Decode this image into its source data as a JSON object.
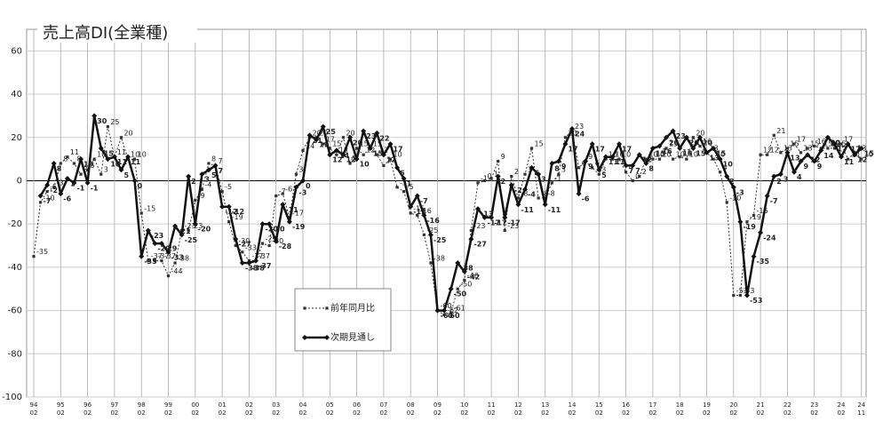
{
  "chart_data": {
    "type": "line",
    "title": "売上高DI(全業種)",
    "ylim": [
      -100,
      70
    ],
    "yticks": [
      -100,
      -80,
      -60,
      -40,
      -20,
      0,
      20,
      40,
      60
    ],
    "grid": true,
    "xticks": [
      {
        "value": 0,
        "label": "94"
      },
      {
        "value": 4,
        "label": "95"
      },
      {
        "value": 8,
        "label": "96"
      },
      {
        "value": 12,
        "label": "97"
      },
      {
        "value": 16,
        "label": "98"
      },
      {
        "value": 20,
        "label": "99"
      },
      {
        "value": 24,
        "label": "00"
      },
      {
        "value": 28,
        "label": "01"
      },
      {
        "value": 32,
        "label": "02"
      },
      {
        "value": 36,
        "label": "03"
      },
      {
        "value": 40,
        "label": "04"
      },
      {
        "value": 44,
        "label": "05"
      },
      {
        "value": 48,
        "label": "06"
      },
      {
        "value": 52,
        "label": "07"
      },
      {
        "value": 56,
        "label": "08"
      },
      {
        "value": 60,
        "label": "09"
      },
      {
        "value": 64,
        "label": "10"
      },
      {
        "value": 68,
        "label": "11"
      },
      {
        "value": 72,
        "label": "12"
      },
      {
        "value": 76,
        "label": "13"
      },
      {
        "value": 80,
        "label": "14"
      },
      {
        "value": 84,
        "label": "15"
      },
      {
        "value": 88,
        "label": "16"
      },
      {
        "value": 92,
        "label": "17"
      },
      {
        "value": 96,
        "label": "18"
      },
      {
        "value": 100,
        "label": "19"
      },
      {
        "value": 104,
        "label": "20"
      },
      {
        "value": 108,
        "label": "21"
      },
      {
        "value": 112,
        "label": "22"
      },
      {
        "value": 116,
        "label": "23"
      },
      {
        "value": 120,
        "label": "24"
      },
      {
        "value": 123,
        "label": "24"
      }
    ],
    "xtick_sublabels": [
      "02",
      "02",
      "02",
      "02",
      "02",
      "02",
      "02",
      "02",
      "02",
      "02",
      "02",
      "02",
      "02",
      "02",
      "02",
      "02",
      "02",
      "02",
      "02",
      "02",
      "02",
      "02",
      "02",
      "02",
      "02",
      "02",
      "02",
      "02",
      "02",
      "02",
      "02",
      "11"
    ],
    "series": [
      {
        "name": "前年同月比",
        "color": "#333333",
        "dashed": true,
        "marker": "square",
        "width": 1,
        "values": [
          -35,
          -10,
          -5,
          -3,
          8,
          11,
          8,
          3,
          5,
          10,
          3,
          25,
          11,
          20,
          10,
          10,
          -15,
          -37,
          -37,
          -37,
          -44,
          -38,
          -23,
          -23,
          -9,
          -4,
          8,
          7,
          -5,
          -19,
          -30,
          -33,
          -37,
          -37,
          -29,
          -30,
          -7,
          -6,
          -17,
          3,
          14,
          20,
          20,
          17,
          15,
          12,
          20,
          8,
          15,
          12,
          15,
          12,
          7,
          10,
          -3,
          -5,
          -15,
          -16,
          -25,
          -38,
          -60,
          -62,
          -61,
          -50,
          -46,
          -23,
          -1,
          0,
          1,
          9,
          -23,
          2,
          -8,
          3,
          15,
          -8,
          -8,
          -1,
          3,
          20,
          23,
          6,
          9,
          6,
          3,
          10,
          10,
          10,
          4,
          0,
          2,
          10,
          10,
          10,
          15,
          10,
          11,
          10,
          20,
          16,
          13,
          10,
          4,
          -10,
          -53,
          -53,
          -19,
          -16,
          12,
          12,
          21,
          13,
          15,
          17,
          13,
          15,
          16,
          15,
          15,
          15,
          17,
          10,
          13,
          10
        ]
      },
      {
        "name": "次期見通し",
        "color": "#111111",
        "dashed": false,
        "marker": "diamond",
        "width": 2.5,
        "values": [
          null,
          -7,
          -2,
          8,
          -6,
          1,
          -1,
          10,
          -1,
          30,
          15,
          10,
          11,
          5,
          11,
          0,
          -35,
          -23,
          -29,
          -29,
          -33,
          -21,
          -25,
          2,
          -20,
          3,
          5,
          7,
          -12,
          -12,
          -27,
          -38,
          -38,
          -37,
          -20,
          -20,
          -28,
          -11,
          -19,
          -3,
          0,
          21,
          19,
          25,
          12,
          14,
          12,
          20,
          10,
          23,
          15,
          22,
          12,
          17,
          6,
          1,
          -12,
          -7,
          -16,
          -25,
          -60,
          -60,
          -50,
          -38,
          -42,
          -27,
          -13,
          -17,
          -17,
          2,
          -17,
          -2,
          -11,
          -4,
          6,
          3,
          -11,
          8,
          9,
          17,
          24,
          -6,
          9,
          17,
          5,
          11,
          11,
          17,
          7,
          7,
          12,
          8,
          15,
          16,
          20,
          23,
          15,
          20,
          15,
          20,
          13,
          15,
          10,
          2,
          -3,
          -19,
          -53,
          -35,
          -24,
          -7,
          2,
          3,
          13,
          4,
          9,
          12,
          9,
          14,
          20,
          17,
          11,
          17,
          12,
          15
        ]
      }
    ]
  }
}
